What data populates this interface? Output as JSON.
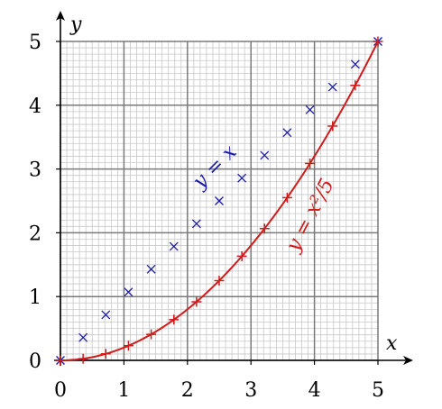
{
  "colors": {
    "background": "#ffffff",
    "minor_grid": "#c8c8c8",
    "major_grid": "#7a7a7a",
    "axis": "#000000",
    "curve_red": "#d11a1a",
    "points_blue": "#1a1aa8"
  },
  "chart_data": {
    "type": "scatter",
    "title": "",
    "xlabel": "x",
    "ylabel": "y",
    "xlim": [
      0,
      5
    ],
    "ylim": [
      0,
      5
    ],
    "grid": true,
    "minor_grid_step": 0.1,
    "major_grid_step": 1,
    "x_ticks": [
      "0",
      "1",
      "2",
      "3",
      "4",
      "5"
    ],
    "y_ticks": [
      "0",
      "1",
      "2",
      "3",
      "4",
      "5"
    ],
    "series": [
      {
        "label_text": "y = x",
        "color": "#1a1aa8",
        "marker": "x",
        "x": [
          0,
          0.357,
          0.714,
          1.071,
          1.429,
          1.786,
          2.143,
          2.5,
          2.857,
          3.214,
          3.571,
          3.929,
          4.286,
          4.643,
          5
        ],
        "y": [
          0,
          0.357,
          0.714,
          1.071,
          1.429,
          1.786,
          2.143,
          2.5,
          2.857,
          3.214,
          3.571,
          3.929,
          4.286,
          4.643,
          5
        ]
      },
      {
        "label_text": "y = x²/5",
        "color": "#d11a1a",
        "marker": "+",
        "line": true,
        "x": [
          0,
          0.357,
          0.714,
          1.071,
          1.429,
          1.786,
          2.143,
          2.5,
          2.857,
          3.214,
          3.571,
          3.929,
          4.286,
          4.643,
          5
        ],
        "y": [
          0,
          0.026,
          0.102,
          0.23,
          0.408,
          0.638,
          0.918,
          1.25,
          1.633,
          2.066,
          2.551,
          3.087,
          3.673,
          4.311,
          5
        ]
      }
    ]
  }
}
